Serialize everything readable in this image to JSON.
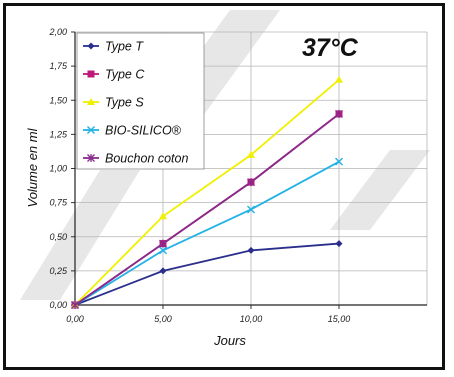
{
  "chart_data": {
    "type": "line",
    "title": "37°C",
    "xlabel": "Jours",
    "ylabel": "Volume en ml",
    "x": [
      0,
      5,
      10,
      15
    ],
    "xlim": [
      0,
      20
    ],
    "ylim": [
      0,
      2
    ],
    "xticks": [
      "0,00",
      "5,00",
      "10,00",
      "15,00"
    ],
    "yticks": [
      "0,00",
      "0,25",
      "0,50",
      "0,75",
      "1,00",
      "1,25",
      "1,50",
      "1,75",
      "2,00"
    ],
    "grid": true,
    "legend_position": "top-left",
    "series": [
      {
        "name": "Type T",
        "values": [
          0,
          0.25,
          0.4,
          0.45
        ],
        "color": "#2b2f8c",
        "marker": "diamond"
      },
      {
        "name": "Type C",
        "values": [
          0,
          0.45,
          0.9,
          1.4
        ],
        "color": "#c0187a",
        "marker": "square"
      },
      {
        "name": "Type S",
        "values": [
          0,
          0.65,
          1.1,
          1.65
        ],
        "color": "#f0f000",
        "marker": "triangle"
      },
      {
        "name": "BIO-SILICO®",
        "values": [
          0,
          0.4,
          0.7,
          1.05
        ],
        "color": "#22b2e6",
        "marker": "x"
      },
      {
        "name": "Bouchon coton",
        "values": [
          0,
          0.45,
          0.9,
          1.4
        ],
        "color": "#8a2a8a",
        "marker": "asterisk"
      }
    ]
  }
}
